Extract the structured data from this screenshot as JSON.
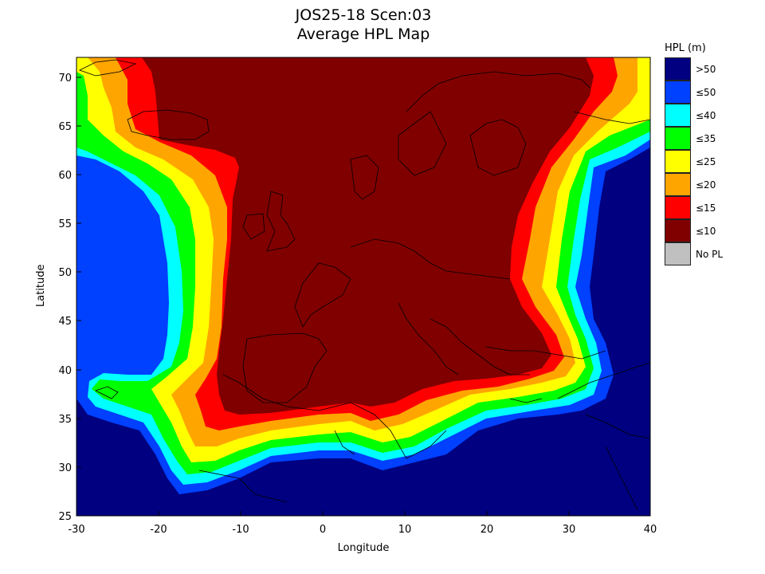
{
  "title_line1": "JOS25-18 Scen:03",
  "title_line2": "Average HPL Map",
  "xlabel": "Longitude",
  "ylabel": "Latitude",
  "x_ticks": [
    "-30",
    "-20",
    "-10",
    "0",
    "10",
    "20",
    "30",
    "40"
  ],
  "y_ticks": [
    "25",
    "30",
    "35",
    "40",
    "45",
    "50",
    "55",
    "60",
    "65",
    "70"
  ],
  "legend": {
    "title": "HPL (m)",
    "items": [
      {
        "label": ">50",
        "color": "#000080"
      },
      {
        "label": "≤50",
        "color": "#0040ff"
      },
      {
        "label": "≤40",
        "color": "#00ffff"
      },
      {
        "label": "≤35",
        "color": "#00ff00"
      },
      {
        "label": "≤25",
        "color": "#ffff00"
      },
      {
        "label": "≤20",
        "color": "#ffa500"
      },
      {
        "label": "≤15",
        "color": "#ff0000"
      },
      {
        "label": "≤10",
        "color": "#800000"
      },
      {
        "label": "No PL",
        "color": "#c0c0c0"
      }
    ]
  },
  "chart_data": {
    "type": "heatmap",
    "title": "JOS25-18 Scen:03 Average HPL Map",
    "xlabel": "Longitude",
    "ylabel": "Latitude",
    "xlim": [
      -30,
      40
    ],
    "ylim": [
      25,
      72
    ],
    "colorbar": "HPL (m)",
    "classes": [
      ">50",
      "≤50",
      "≤40",
      "≤35",
      "≤25",
      "≤20",
      "≤15",
      "≤10",
      "No PL"
    ]
  }
}
